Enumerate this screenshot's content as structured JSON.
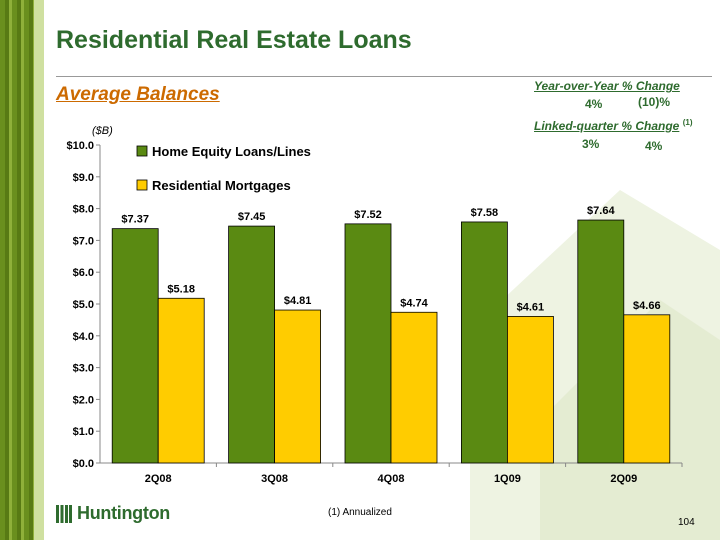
{
  "title": "Residential Real Estate Loans",
  "subtitle": "Average Balances",
  "change_panel": {
    "yoy_label": "Year-over-Year % Change",
    "yoy_values": [
      "4%",
      "(10)%"
    ],
    "linked_label": "Linked-quarter % Change",
    "linked_note": "(1)",
    "linked_values": [
      "3%",
      "4%"
    ]
  },
  "unit_label": "($B)",
  "footnote": "(1)  Annualized",
  "page_number": "104",
  "logo_text": "Huntington",
  "colors": {
    "title": "#2e6b2e",
    "subtitle": "#cc6a00",
    "home_equity": "#5a8a12",
    "mortgages": "#ffcc00"
  },
  "chart_data": {
    "type": "bar",
    "categories": [
      "2Q08",
      "3Q08",
      "4Q08",
      "1Q09",
      "2Q09"
    ],
    "series": [
      {
        "name": "Home Equity Loans/Lines",
        "values": [
          7.37,
          7.45,
          7.52,
          7.58,
          7.64
        ],
        "labels": [
          "$7.37",
          "$7.45",
          "$7.52",
          "$7.58",
          "$7.64"
        ],
        "color": "#5a8a12"
      },
      {
        "name": "Residential Mortgages",
        "values": [
          5.18,
          4.81,
          4.74,
          4.61,
          4.66
        ],
        "labels": [
          "$5.18",
          "$4.81",
          "$4.74",
          "$4.61",
          "$4.66"
        ],
        "color": "#ffcc00"
      }
    ],
    "yticks": [
      "$0.0",
      "$1.0",
      "$2.0",
      "$3.0",
      "$4.0",
      "$5.0",
      "$6.0",
      "$7.0",
      "$8.0",
      "$9.0",
      "$10.0"
    ],
    "ylim": [
      0,
      10
    ],
    "legend_position": "top-left",
    "grid": false
  }
}
